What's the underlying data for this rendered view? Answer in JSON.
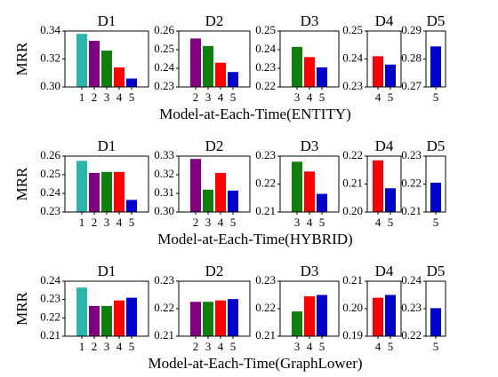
{
  "figure": {
    "ylabel": "MRR"
  },
  "colors": {
    "1": "#2ab5ad",
    "2": "#800080",
    "3": "#0f7f0f",
    "4": "#ff0000",
    "5": "#0000cc"
  },
  "chart_data": [
    {
      "type": "bar",
      "xlabel": "Model-at-Each-Time(ENTITY)",
      "ylabel": "MRR",
      "panels": [
        {
          "title": "D1",
          "categories": [
            "1",
            "2",
            "3",
            "4",
            "5"
          ],
          "values": [
            0.338,
            0.333,
            0.326,
            0.314,
            0.306
          ],
          "ylim": [
            0.3,
            0.34
          ],
          "yticks": [
            "0.30",
            "0.32",
            "0.34"
          ]
        },
        {
          "title": "D2",
          "categories": [
            "2",
            "3",
            "4",
            "5"
          ],
          "values": [
            0.256,
            0.252,
            0.243,
            0.238
          ],
          "ylim": [
            0.23,
            0.26
          ],
          "yticks": [
            "0.23",
            "0.24",
            "0.25",
            "0.26"
          ]
        },
        {
          "title": "D3",
          "categories": [
            "3",
            "4",
            "5"
          ],
          "values": [
            0.2415,
            0.236,
            0.2305
          ],
          "ylim": [
            0.22,
            0.25
          ],
          "yticks": [
            "0.22",
            "0.23",
            "0.24",
            "0.25"
          ]
        },
        {
          "title": "D4",
          "categories": [
            "4",
            "5"
          ],
          "values": [
            0.241,
            0.238
          ],
          "ylim": [
            0.23,
            0.25
          ],
          "yticks": [
            "0.23",
            "0.24",
            "0.25"
          ]
        },
        {
          "title": "D5",
          "categories": [
            "5"
          ],
          "values": [
            0.2845
          ],
          "ylim": [
            0.27,
            0.29
          ],
          "yticks": [
            "0.27",
            "0.28",
            "0.29"
          ]
        }
      ]
    },
    {
      "type": "bar",
      "xlabel": "Model-at-Each-Time(HYBRID)",
      "ylabel": "MRR",
      "panels": [
        {
          "title": "D1",
          "categories": [
            "1",
            "2",
            "3",
            "4",
            "5"
          ],
          "values": [
            0.2575,
            0.251,
            0.2515,
            0.2515,
            0.2365
          ],
          "ylim": [
            0.23,
            0.26
          ],
          "yticks": [
            "0.23",
            "0.24",
            "0.25",
            "0.26"
          ]
        },
        {
          "title": "D2",
          "categories": [
            "2",
            "3",
            "4",
            "5"
          ],
          "values": [
            0.3285,
            0.312,
            0.321,
            0.3115
          ],
          "ylim": [
            0.3,
            0.33
          ],
          "yticks": [
            "0.30",
            "0.31",
            "0.32",
            "0.33"
          ]
        },
        {
          "title": "D3",
          "categories": [
            "3",
            "4",
            "5"
          ],
          "values": [
            0.228,
            0.2245,
            0.2165
          ],
          "ylim": [
            0.21,
            0.23
          ],
          "yticks": [
            "0.21",
            "0.22",
            "0.23"
          ]
        },
        {
          "title": "D4",
          "categories": [
            "4",
            "5"
          ],
          "values": [
            0.2185,
            0.2085
          ],
          "ylim": [
            0.2,
            0.22
          ],
          "yticks": [
            "0.20",
            "0.21",
            "0.22"
          ]
        },
        {
          "title": "D5",
          "categories": [
            "5"
          ],
          "values": [
            0.2205
          ],
          "ylim": [
            0.21,
            0.23
          ],
          "yticks": [
            "0.21",
            "0.22",
            "0.23"
          ]
        }
      ]
    },
    {
      "type": "bar",
      "xlabel": "Model-at-Each-Time(GraphLower)",
      "ylabel": "MRR",
      "panels": [
        {
          "title": "D1",
          "categories": [
            "1",
            "2",
            "3",
            "4",
            "5"
          ],
          "values": [
            0.2365,
            0.2265,
            0.2265,
            0.2295,
            0.231
          ],
          "ylim": [
            0.21,
            0.24
          ],
          "yticks": [
            "0.21",
            "0.22",
            "0.23",
            "0.24"
          ]
        },
        {
          "title": "D2",
          "categories": [
            "2",
            "3",
            "4",
            "5"
          ],
          "values": [
            0.2225,
            0.2225,
            0.223,
            0.2235
          ],
          "ylim": [
            0.21,
            0.23
          ],
          "yticks": [
            "0.21",
            "0.22",
            "0.23"
          ]
        },
        {
          "title": "D3",
          "categories": [
            "3",
            "4",
            "5"
          ],
          "values": [
            0.219,
            0.2245,
            0.225
          ],
          "ylim": [
            0.21,
            0.23
          ],
          "yticks": [
            "0.21",
            "0.22",
            "0.23"
          ]
        },
        {
          "title": "D4",
          "categories": [
            "4",
            "5"
          ],
          "values": [
            0.204,
            0.205
          ],
          "ylim": [
            0.19,
            0.21
          ],
          "yticks": [
            "0.19",
            "0.20",
            "0.21"
          ]
        },
        {
          "title": "D5",
          "categories": [
            "5"
          ],
          "values": [
            0.2302
          ],
          "ylim": [
            0.22,
            0.24
          ],
          "yticks": [
            "0.22",
            "0.23",
            "0.24"
          ]
        }
      ]
    }
  ]
}
